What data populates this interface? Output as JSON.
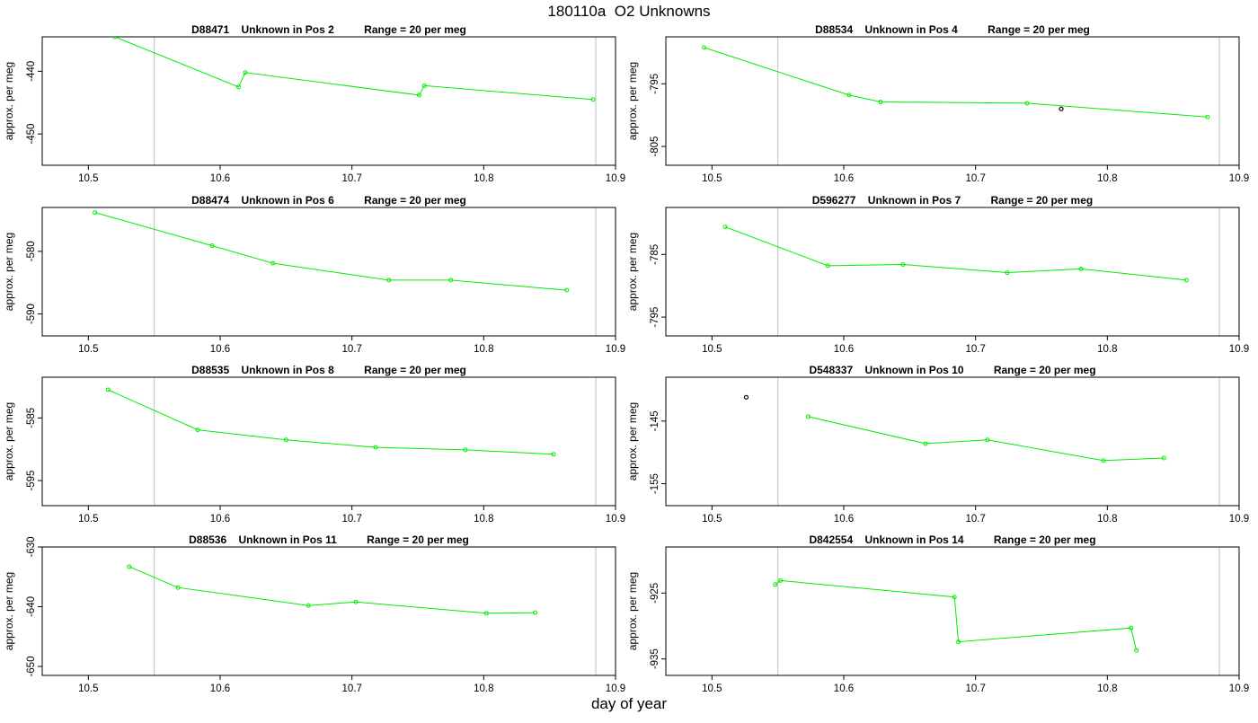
{
  "title": "180110a  O2 Unknowns",
  "xlabel": "day of year",
  "colors": {
    "series": "#00ee00",
    "outlier": "#000000",
    "refline": "#c8c8c8",
    "frame": "#000000"
  },
  "chart_data": [
    {
      "type": "line",
      "title": "D88471    Unknown in Pos 2          Range = 20 per meg",
      "ylabel": "approx. per meg",
      "xlim": [
        10.465,
        10.9
      ],
      "ylim": [
        -455,
        -434.5
      ],
      "xticks": [
        10.5,
        10.6,
        10.7,
        10.8,
        10.9
      ],
      "yticks": [
        -440,
        -450
      ],
      "vlines": [
        10.55,
        10.885
      ],
      "series": [
        {
          "x": [
            10.52,
            10.614,
            10.619,
            10.751,
            10.755,
            10.883
          ],
          "y": [
            -434.5,
            -442.5,
            -440.2,
            -443.8,
            -442.3,
            -444.5
          ]
        }
      ],
      "outliers": []
    },
    {
      "type": "line",
      "title": "D88534    Unknown in Pos 4          Range = 20 per meg",
      "ylabel": "approx. per meg",
      "xlim": [
        10.465,
        10.9
      ],
      "ylim": [
        -808,
        -787.5
      ],
      "xticks": [
        10.5,
        10.6,
        10.7,
        10.8,
        10.9
      ],
      "yticks": [
        -795,
        -805
      ],
      "vlines": [
        10.55,
        10.885
      ],
      "series": [
        {
          "x": [
            10.494,
            10.604,
            10.628,
            10.739,
            10.876
          ],
          "y": [
            -789.2,
            -796.8,
            -797.9,
            -798.1,
            -800.3
          ]
        }
      ],
      "outliers": [
        {
          "x": 10.765,
          "y": -799
        }
      ]
    },
    {
      "type": "line",
      "title": "D88474    Unknown in Pos 6          Range = 20 per meg",
      "ylabel": "approx. per meg",
      "xlim": [
        10.465,
        10.9
      ],
      "ylim": [
        -593.5,
        -573
      ],
      "xticks": [
        10.5,
        10.6,
        10.7,
        10.8,
        10.9
      ],
      "yticks": [
        -580,
        -590
      ],
      "vlines": [
        10.55,
        10.885
      ],
      "series": [
        {
          "x": [
            10.505,
            10.594,
            10.64,
            10.728,
            10.775,
            10.863
          ],
          "y": [
            -573.8,
            -579.1,
            -581.9,
            -584.6,
            -584.6,
            -586.2
          ]
        }
      ],
      "outliers": []
    },
    {
      "type": "line",
      "title": "D596277    Unknown in Pos 7          Range = 20 per meg",
      "ylabel": "approx. per meg",
      "xlim": [
        10.465,
        10.9
      ],
      "ylim": [
        -798,
        -777.5
      ],
      "xticks": [
        10.5,
        10.6,
        10.7,
        10.8,
        10.9
      ],
      "yticks": [
        -785,
        -795
      ],
      "vlines": [
        10.55,
        10.885
      ],
      "series": [
        {
          "x": [
            10.51,
            10.588,
            10.645,
            10.724,
            10.78,
            10.86
          ],
          "y": [
            -780.6,
            -786.8,
            -786.6,
            -787.9,
            -787.3,
            -789.1
          ]
        }
      ],
      "outliers": []
    },
    {
      "type": "line",
      "title": "D88535    Unknown in Pos 8          Range = 20 per meg",
      "ylabel": "approx. per meg",
      "xlim": [
        10.465,
        10.9
      ],
      "ylim": [
        -599,
        -578.5
      ],
      "xticks": [
        10.5,
        10.6,
        10.7,
        10.8,
        10.9
      ],
      "yticks": [
        -585,
        -595
      ],
      "vlines": [
        10.55,
        10.885
      ],
      "series": [
        {
          "x": [
            10.515,
            10.583,
            10.65,
            10.718,
            10.786,
            10.853
          ],
          "y": [
            -580.5,
            -586.9,
            -588.5,
            -589.7,
            -590.1,
            -590.8
          ]
        }
      ],
      "outliers": []
    },
    {
      "type": "line",
      "title": "D548337    Unknown in Pos 10          Range = 20 per meg",
      "ylabel": "approx. per meg",
      "xlim": [
        10.465,
        10.9
      ],
      "ylim": [
        -158.5,
        -138
      ],
      "xticks": [
        10.5,
        10.6,
        10.7,
        10.8,
        10.9
      ],
      "yticks": [
        -145,
        -155
      ],
      "vlines": [
        10.55,
        10.885
      ],
      "series": [
        {
          "x": [
            10.573,
            10.662,
            10.709,
            10.797,
            10.843
          ],
          "y": [
            -144.3,
            -148.6,
            -148,
            -151.3,
            -150.9
          ]
        }
      ],
      "outliers": [
        {
          "x": 10.526,
          "y": -141.2
        }
      ]
    },
    {
      "type": "line",
      "title": "D88536    Unknown in Pos 11          Range = 20 per meg",
      "ylabel": "approx. per meg",
      "xlim": [
        10.465,
        10.9
      ],
      "ylim": [
        -651.5,
        -630
      ],
      "xticks": [
        10.5,
        10.6,
        10.7,
        10.8,
        10.9
      ],
      "yticks": [
        -630,
        -640,
        -650
      ],
      "vlines": [
        10.55,
        10.885
      ],
      "series": [
        {
          "x": [
            10.531,
            10.568,
            10.667,
            10.703,
            10.802,
            10.839
          ],
          "y": [
            -633.3,
            -636.8,
            -639.8,
            -639.2,
            -641.1,
            -641
          ]
        }
      ],
      "outliers": []
    },
    {
      "type": "line",
      "title": "D842554    Unknown in Pos 14          Range = 20 per meg",
      "ylabel": "approx. per meg",
      "xlim": [
        10.465,
        10.9
      ],
      "ylim": [
        -937.5,
        -918
      ],
      "xticks": [
        10.5,
        10.6,
        10.7,
        10.8,
        10.9
      ],
      "yticks": [
        -925,
        -935
      ],
      "vlines": [
        10.55,
        10.885
      ],
      "series": [
        {
          "x": [
            10.548,
            10.552,
            10.684,
            10.687,
            10.818,
            10.822
          ],
          "y": [
            -923.7,
            -923.1,
            -925.6,
            -932.4,
            -930.3,
            -933.7
          ]
        }
      ],
      "outliers": []
    }
  ]
}
